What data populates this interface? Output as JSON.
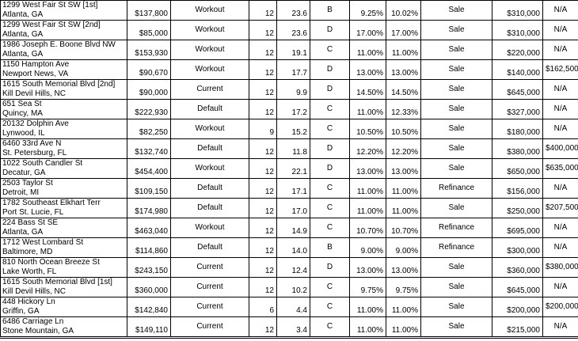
{
  "rows": [
    {
      "address": "1299 West Fair St SW [1st]",
      "city": "Atlanta, GA",
      "amount": "$137,800",
      "status": "Workout",
      "term": "12",
      "ltv": "23.6",
      "grade": "B",
      "rate1": "9.25%",
      "rate2": "10.02%",
      "purpose": "Sale",
      "value": "$310,000",
      "extra": "N/A"
    },
    {
      "address": "1299 West Fair St SW [2nd]",
      "city": "Atlanta, GA",
      "amount": "$85,000",
      "status": "Workout",
      "term": "12",
      "ltv": "23.6",
      "grade": "D",
      "rate1": "17.00%",
      "rate2": "17.00%",
      "purpose": "Sale",
      "value": "$310,000",
      "extra": "N/A"
    },
    {
      "address": "1986 Joseph E. Boone Blvd NW",
      "city": "Atlanta, GA",
      "amount": "$153,930",
      "status": "Workout",
      "term": "12",
      "ltv": "19.1",
      "grade": "C",
      "rate1": "11.00%",
      "rate2": "11.00%",
      "purpose": "Sale",
      "value": "$220,000",
      "extra": "N/A"
    },
    {
      "address": "1150 Hampton Ave",
      "city": "Newport News, VA",
      "amount": "$90,670",
      "status": "Workout",
      "term": "12",
      "ltv": "17.7",
      "grade": "D",
      "rate1": "13.00%",
      "rate2": "13.00%",
      "purpose": "Sale",
      "value": "$140,000",
      "extra": "$162,500"
    },
    {
      "address": "1615 South Memorial Blvd [2nd]",
      "city": "Kill Devil Hills, NC",
      "amount": "$90,000",
      "status": "Current",
      "term": "12",
      "ltv": "9.9",
      "grade": "D",
      "rate1": "14.50%",
      "rate2": "14.50%",
      "purpose": "Sale",
      "value": "$645,000",
      "extra": "N/A"
    },
    {
      "address": "651 Sea St",
      "city": "Quincy, MA",
      "amount": "$222,930",
      "status": "Default",
      "term": "12",
      "ltv": "17.2",
      "grade": "C",
      "rate1": "11.00%",
      "rate2": "12.33%",
      "purpose": "Sale",
      "value": "$327,000",
      "extra": "N/A"
    },
    {
      "address": "20132 Dolphin Ave",
      "city": "Lynwood, IL",
      "amount": "$82,250",
      "status": "Workout",
      "term": "9",
      "ltv": "15.2",
      "grade": "C",
      "rate1": "10.50%",
      "rate2": "10.50%",
      "purpose": "Sale",
      "value": "$180,000",
      "extra": "N/A"
    },
    {
      "address": "6460 33rd Ave N",
      "city": "St. Petersburg, FL",
      "amount": "$132,740",
      "status": "Default",
      "term": "12",
      "ltv": "11.8",
      "grade": "D",
      "rate1": "12.20%",
      "rate2": "12.20%",
      "purpose": "Sale",
      "value": "$380,000",
      "extra": "$400,000"
    },
    {
      "address": "1022 South Candler St",
      "city": "Decatur, GA",
      "amount": "$454,400",
      "status": "Workout",
      "term": "12",
      "ltv": "22.1",
      "grade": "D",
      "rate1": "13.00%",
      "rate2": "13.00%",
      "purpose": "Sale",
      "value": "$650,000",
      "extra": "$635,000"
    },
    {
      "address": "2503 Taylor St",
      "city": "Detroit, MI",
      "amount": "$109,150",
      "status": "Default",
      "term": "12",
      "ltv": "17.1",
      "grade": "C",
      "rate1": "11.00%",
      "rate2": "11.00%",
      "purpose": "Refinance",
      "value": "$156,000",
      "extra": "N/A"
    },
    {
      "address": "1782 Southeast Elkhart Terr",
      "city": "Port St. Lucie, FL",
      "amount": "$174,980",
      "status": "Default",
      "term": "12",
      "ltv": "17.0",
      "grade": "C",
      "rate1": "11.00%",
      "rate2": "11.00%",
      "purpose": "Sale",
      "value": "$250,000",
      "extra": "$207,500"
    },
    {
      "address": "224 Bass St SE",
      "city": "Atlanta, GA",
      "amount": "$463,040",
      "status": "Workout",
      "term": "12",
      "ltv": "14.9",
      "grade": "C",
      "rate1": "10.70%",
      "rate2": "10.70%",
      "purpose": "Refinance",
      "value": "$695,000",
      "extra": "N/A"
    },
    {
      "address": "1712 West Lombard St",
      "city": "Baltimore, MD",
      "amount": "$114,860",
      "status": "Default",
      "term": "12",
      "ltv": "14.0",
      "grade": "B",
      "rate1": "9.00%",
      "rate2": "9.00%",
      "purpose": "Refinance",
      "value": "$300,000",
      "extra": "N/A"
    },
    {
      "address": "810 North Ocean Breeze St",
      "city": "Lake Worth, FL",
      "amount": "$243,150",
      "status": "Current",
      "term": "12",
      "ltv": "12.4",
      "grade": "D",
      "rate1": "13.00%",
      "rate2": "13.00%",
      "purpose": "Sale",
      "value": "$360,000",
      "extra": "$380,000"
    },
    {
      "address": "1615 South Memorial Blvd [1st]",
      "city": "Kill Devil Hills, NC",
      "amount": "$360,000",
      "status": "Current",
      "term": "12",
      "ltv": "10.2",
      "grade": "C",
      "rate1": "9.75%",
      "rate2": "9.75%",
      "purpose": "Sale",
      "value": "$645,000",
      "extra": "N/A"
    },
    {
      "address": "448 Hickory Ln",
      "city": "Griffin, GA",
      "amount": "$142,840",
      "status": "Current",
      "term": "6",
      "ltv": "4.4",
      "grade": "C",
      "rate1": "11.00%",
      "rate2": "11.00%",
      "purpose": "Sale",
      "value": "$200,000",
      "extra": "$200,000"
    },
    {
      "address": "6486 Carriage Ln",
      "city": "Stone Mountain, GA",
      "amount": "$149,110",
      "status": "Current",
      "term": "12",
      "ltv": "3.4",
      "grade": "C",
      "rate1": "11.00%",
      "rate2": "11.00%",
      "purpose": "Sale",
      "value": "$215,000",
      "extra": "N/A"
    }
  ]
}
